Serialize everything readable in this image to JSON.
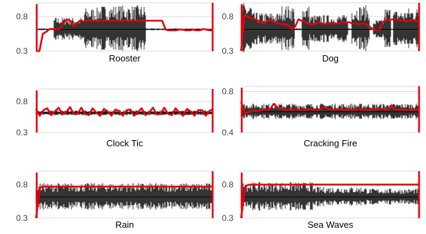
{
  "colors": {
    "waveform": "#000000",
    "envelope": "#e8000b",
    "gridline": "#d9d9d9",
    "tick_text": "#404040"
  },
  "chart_data": [
    {
      "type": "line",
      "title": "Rooster",
      "ylim": [
        0.3,
        1.0
      ],
      "yticks": [
        "0.8",
        "0.3"
      ],
      "tick_values": [
        0.8,
        0.3
      ],
      "grid": true,
      "legend": "none",
      "series": [
        {
          "values": [
            0.3,
            0.3,
            0.55,
            0.58,
            0.62,
            0.62,
            0.62,
            0.62,
            0.7,
            0.76,
            0.74,
            0.66,
            0.7,
            0.74,
            0.73,
            0.74,
            0.75,
            0.74,
            0.74,
            0.74,
            0.74,
            0.74,
            0.74,
            0.74,
            0.74,
            0.74,
            0.74,
            0.74,
            0.74,
            0.74,
            0.74,
            0.74,
            0.74,
            0.74,
            0.74,
            0.74,
            0.74,
            0.74,
            0.61,
            0.6,
            0.6,
            0.6,
            0.61,
            0.61,
            0.6,
            0.6,
            0.61,
            0.6,
            0.6,
            0.62,
            0.61,
            0.6,
            0.6
          ]
        }
      ]
    },
    {
      "type": "line",
      "title": "Dog",
      "ylim": [
        0.3,
        1.0
      ],
      "yticks": [
        "0.8",
        "0.3"
      ],
      "tick_values": [
        0.8,
        0.3
      ],
      "grid": true,
      "legend": "none",
      "series": [
        {
          "values": [
            0.3,
            0.82,
            0.8,
            0.78,
            0.76,
            0.74,
            0.72,
            0.7,
            0.75,
            0.74,
            0.72,
            0.7,
            0.69,
            0.69,
            0.67,
            0.62,
            0.65,
            0.76,
            0.74,
            0.72,
            0.7,
            0.68,
            0.7,
            0.72,
            0.7,
            0.69,
            0.7,
            0.71,
            0.7,
            0.7,
            0.72,
            0.71,
            0.72,
            0.7,
            0.7,
            0.69,
            0.7,
            0.69,
            0.66,
            0.62,
            0.6,
            0.6,
            0.72,
            0.75,
            0.75,
            0.76,
            0.76,
            0.74,
            0.75,
            0.73,
            0.74,
            0.75,
            0.74,
            0.73
          ]
        }
      ]
    },
    {
      "type": "line",
      "title": "Clock Tic",
      "ylim": [
        0.3,
        1.0
      ],
      "yticks": [
        "0.8",
        "0.3"
      ],
      "tick_values": [
        0.8,
        0.3
      ],
      "grid": true,
      "legend": "none",
      "series": [
        {
          "values": [
            0.68,
            0.57,
            0.66,
            0.69,
            0.58,
            0.64,
            0.7,
            0.59,
            0.63,
            0.71,
            0.6,
            0.6,
            0.7,
            0.6,
            0.58,
            0.69,
            0.62,
            0.57,
            0.68,
            0.64,
            0.57,
            0.67,
            0.65,
            0.57,
            0.66,
            0.67,
            0.57,
            0.63,
            0.69,
            0.58,
            0.62,
            0.7,
            0.59,
            0.6,
            0.7,
            0.6,
            0.58,
            0.69,
            0.62,
            0.57,
            0.68,
            0.64,
            0.57,
            0.66,
            0.66,
            0.57,
            0.65,
            0.68
          ]
        }
      ]
    },
    {
      "type": "line",
      "title": "Cracking Fire",
      "ylim": [
        0.4,
        0.85
      ],
      "yticks": [
        "0.8",
        "0.4"
      ],
      "tick_values": [
        0.8,
        0.4
      ],
      "grid": true,
      "legend": "none",
      "series": [
        {
          "values": [
            0.7,
            0.59,
            0.6,
            0.61,
            0.61,
            0.61,
            0.62,
            0.62,
            0.63,
            0.68,
            0.64,
            0.63,
            0.62,
            0.62,
            0.62,
            0.63,
            0.62,
            0.62,
            0.62,
            0.63,
            0.62,
            0.62,
            0.63,
            0.65,
            0.63,
            0.62,
            0.62,
            0.63,
            0.62,
            0.62,
            0.62,
            0.62,
            0.64,
            0.62,
            0.62,
            0.62,
            0.62,
            0.62,
            0.63,
            0.63,
            0.62,
            0.66,
            0.63,
            0.62,
            0.62,
            0.62,
            0.62,
            0.62,
            0.62,
            0.62
          ]
        }
      ]
    },
    {
      "type": "line",
      "title": "Rain",
      "ylim": [
        0.3,
        1.0
      ],
      "yticks": [
        "0.8",
        "0.3"
      ],
      "tick_values": [
        0.8,
        0.3
      ],
      "grid": true,
      "legend": "none",
      "series": [
        {
          "values": [
            0.3,
            0.76,
            0.77,
            0.77,
            0.77,
            0.77,
            0.77,
            0.77,
            0.77,
            0.77,
            0.77,
            0.77,
            0.77,
            0.77,
            0.77,
            0.77,
            0.77,
            0.77,
            0.77,
            0.77,
            0.77,
            0.77,
            0.77,
            0.77,
            0.77,
            0.77,
            0.77,
            0.77,
            0.77,
            0.77,
            0.77,
            0.77,
            0.77,
            0.77,
            0.77,
            0.77,
            0.77,
            0.77,
            0.77,
            0.77,
            0.77,
            0.77,
            0.77
          ]
        }
      ]
    },
    {
      "type": "line",
      "title": "Sea Waves",
      "ylim": [
        0.3,
        1.0
      ],
      "yticks": [
        "0.8",
        "0.3"
      ],
      "tick_values": [
        0.8,
        0.3
      ],
      "grid": true,
      "legend": "none",
      "series": [
        {
          "values": [
            0.3,
            0.78,
            0.8,
            0.8,
            0.8,
            0.8,
            0.8,
            0.8,
            0.8,
            0.8,
            0.8,
            0.8,
            0.8,
            0.8,
            0.8,
            0.8,
            0.8,
            0.8,
            0.8,
            0.8,
            0.8,
            0.8,
            0.8,
            0.8,
            0.8,
            0.8,
            0.8,
            0.8,
            0.8,
            0.8,
            0.8,
            0.8,
            0.8,
            0.8,
            0.8,
            0.8,
            0.8,
            0.8,
            0.8,
            0.8,
            0.8,
            0.8
          ]
        }
      ]
    }
  ]
}
